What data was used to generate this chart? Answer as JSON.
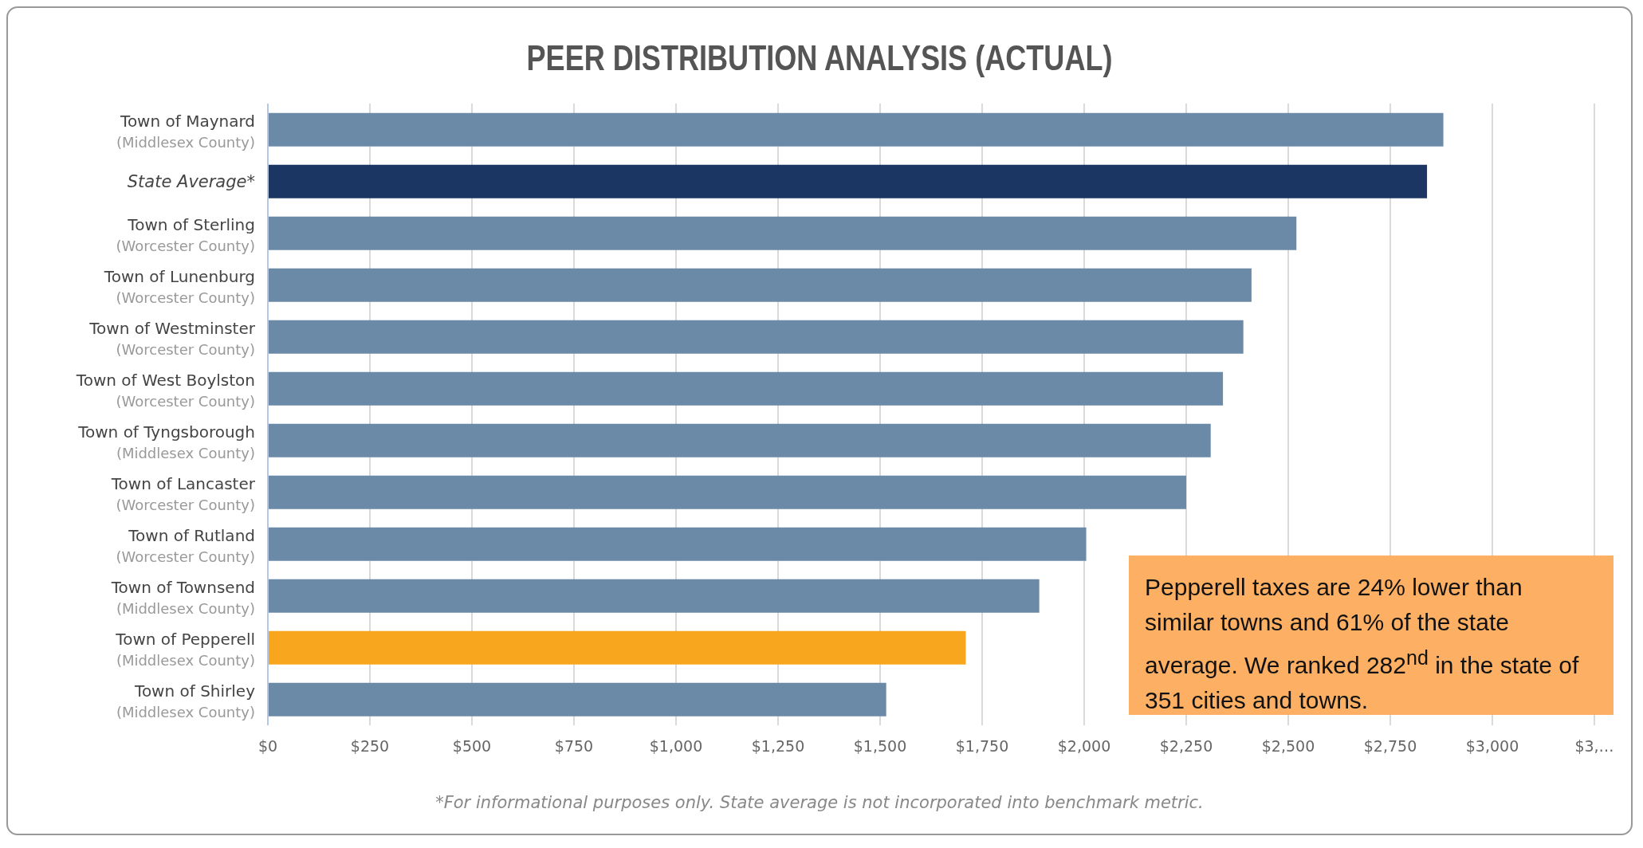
{
  "chart_data": {
    "type": "bar",
    "orientation": "horizontal",
    "title": "PEER DISTRIBUTION ANALYSIS (ACTUAL)",
    "categories": [
      "Town of Maynard\n(Middlesex County)",
      "State Average*",
      "Town of Sterling\n(Worcester County)",
      "Town of Lunenburg\n(Worcester County)",
      "Town of Westminster\n(Worcester County)",
      "Town of West Boylston\n(Worcester County)",
      "Town of Tyngsborough\n(Middlesex County)",
      "Town of Lancaster\n(Worcester County)",
      "Town of Rutland\n(Worcester County)",
      "Town of Townsend\n(Middlesex County)",
      "Town of Pepperell\n(Middlesex County)",
      "Town of Shirley\n(Middlesex County)"
    ],
    "values": [
      2880,
      2840,
      2520,
      2410,
      2390,
      2340,
      2310,
      2250,
      2005,
      1890,
      1710,
      1515
    ],
    "colors": [
      "#6b8aa7",
      "#1b3663",
      "#6b8aa7",
      "#6b8aa7",
      "#6b8aa7",
      "#6b8aa7",
      "#6b8aa7",
      "#6b8aa7",
      "#6b8aa7",
      "#6b8aa7",
      "#f9a61f",
      "#6b8aa7"
    ],
    "xlim": [
      0,
      3250
    ],
    "xticks": [
      {
        "value": 0,
        "label": "$0"
      },
      {
        "value": 250,
        "label": "$250"
      },
      {
        "value": 500,
        "label": "$500"
      },
      {
        "value": 750,
        "label": "$750"
      },
      {
        "value": 1000,
        "label": "$1,000"
      },
      {
        "value": 1250,
        "label": "$1,250"
      },
      {
        "value": 1500,
        "label": "$1,500"
      },
      {
        "value": 1750,
        "label": "$1,750"
      },
      {
        "value": 2000,
        "label": "$2,000"
      },
      {
        "value": 2250,
        "label": "$2,250"
      },
      {
        "value": 2500,
        "label": "$2,500"
      },
      {
        "value": 2750,
        "label": "$2,750"
      },
      {
        "value": 3000,
        "label": "$3,000"
      },
      {
        "value": 3250,
        "label": "$3,…"
      }
    ],
    "grid": "x",
    "annotations": [
      "Pepperell taxes are 24% lower than similar towns and 61% of the state average.  We ranked 282$^{nd}$ in the state of 351 cities and towns.",
      "*For informational purposes only. State average is not incorporated into benchmark metric."
    ]
  }
}
